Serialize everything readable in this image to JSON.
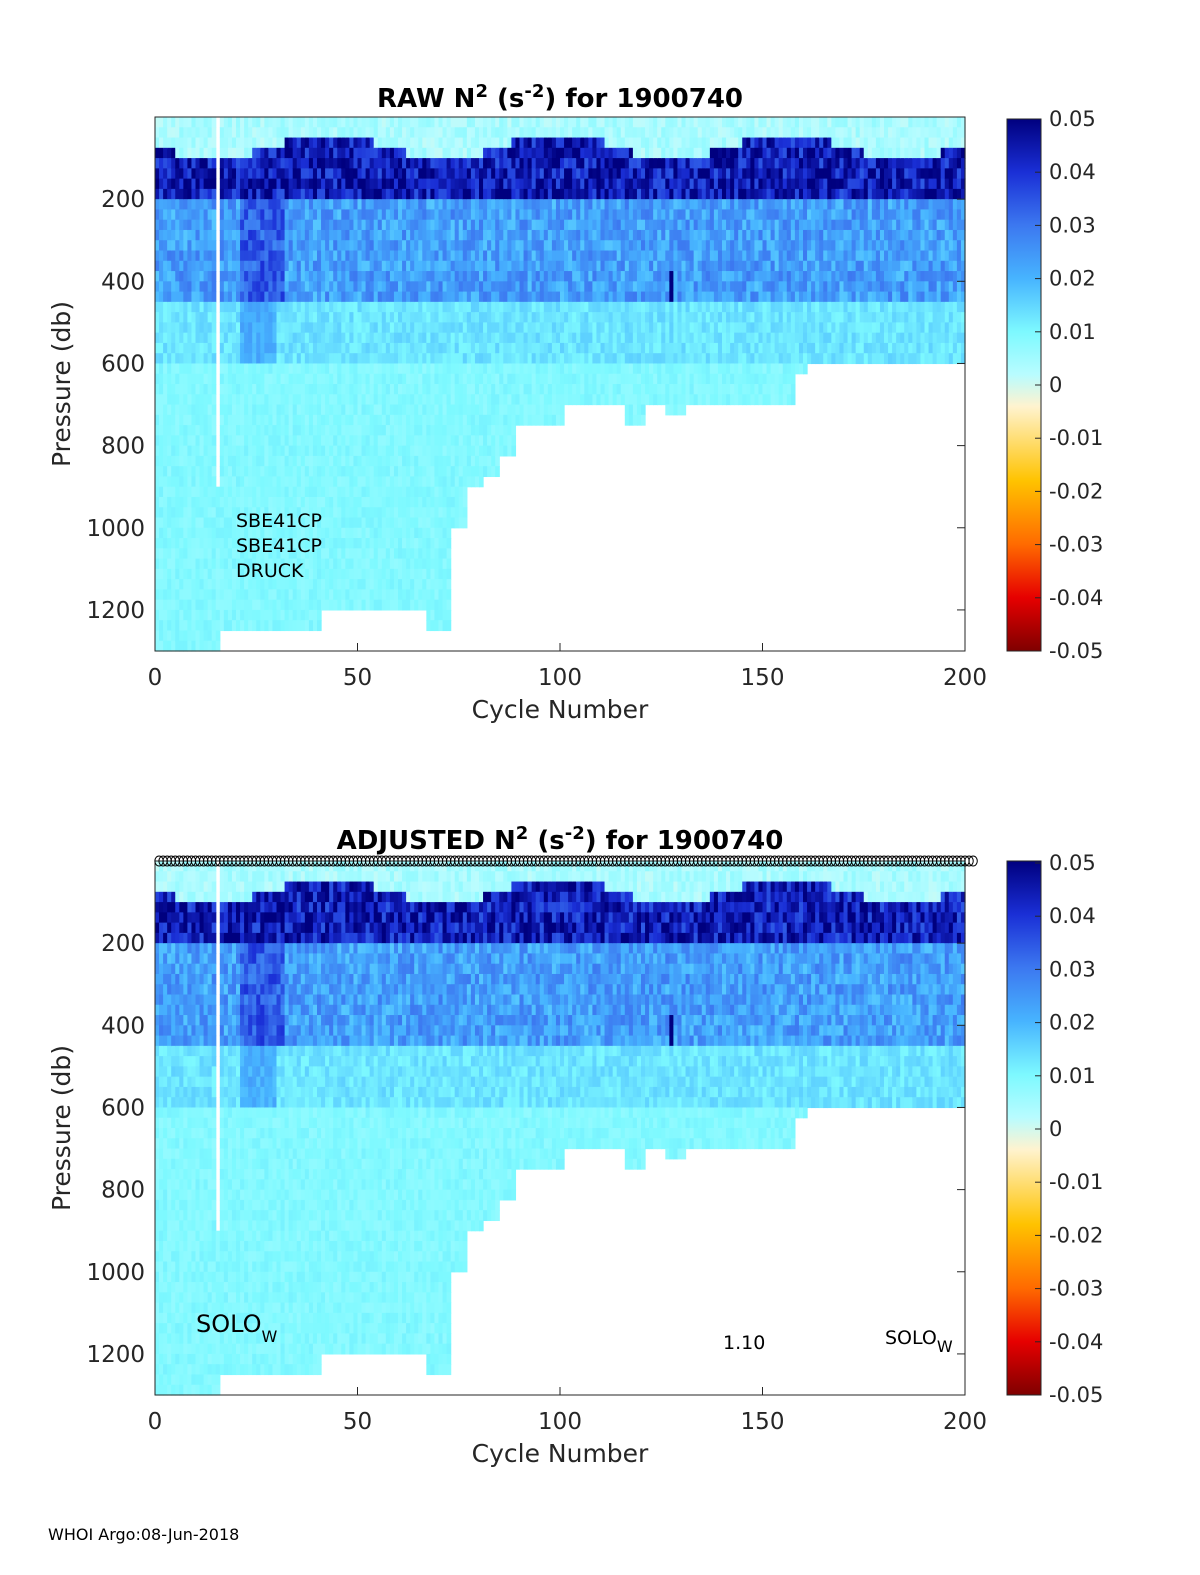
{
  "footer": "WHOI Argo:08-Jun-2018",
  "colorbar": {
    "ticks": [
      "0.05",
      "0.04",
      "0.03",
      "0.02",
      "0.01",
      "0",
      "-0.01",
      "-0.02",
      "-0.03",
      "-0.04",
      "-0.05"
    ],
    "range": [
      -0.05,
      0.05
    ],
    "colormap": [
      "#7f0000",
      "#e60000",
      "#ff6a00",
      "#ffc300",
      "#fff7d6",
      "#7df9ff",
      "#47b4ff",
      "#3c78f0",
      "#1a2fd6",
      "#00007f"
    ]
  },
  "chart_data": [
    {
      "type": "heatmap",
      "title": {
        "prefix": "RAW N",
        "sup1": "2",
        "mid": " (s",
        "sup2": "-2",
        "suffix": ") for 1900740"
      },
      "xlabel": "Cycle Number",
      "ylabel": "Pressure (db)",
      "xlim": [
        0,
        200
      ],
      "ylim": [
        1300,
        0
      ],
      "xticks": [
        "0",
        "50",
        "100",
        "150",
        "200"
      ],
      "yticks": [
        "200",
        "400",
        "600",
        "800",
        "1000",
        "1200"
      ],
      "annotations": [
        "SBE41CP",
        "SBE41CP",
        "DRUCK"
      ],
      "max_depth_profile": {
        "cycles": [
          0,
          15,
          30,
          40,
          55,
          66,
          72,
          76,
          80,
          84,
          88,
          100,
          115,
          120,
          125,
          130,
          140,
          150,
          157,
          160,
          180,
          200
        ],
        "depth": [
          1300,
          1250,
          1240,
          1200,
          1200,
          1250,
          1000,
          900,
          860,
          820,
          750,
          700,
          750,
          700,
          720,
          700,
          700,
          680,
          620,
          600,
          600,
          600
        ]
      },
      "gap_cycle": 15,
      "gap_depth": 900,
      "markers_top": false
    },
    {
      "type": "heatmap",
      "title": {
        "prefix": "ADJUSTED N",
        "sup1": "2",
        "mid": " (s",
        "sup2": "-2",
        "suffix": ") for 1900740"
      },
      "xlabel": "Cycle Number",
      "ylabel": "Pressure (db)",
      "xlim": [
        0,
        200
      ],
      "ylim": [
        1300,
        0
      ],
      "xticks": [
        "0",
        "50",
        "100",
        "150",
        "200"
      ],
      "yticks": [
        "200",
        "400",
        "600",
        "800",
        "1000",
        "1200"
      ],
      "annotations": {
        "left": {
          "text": "SOLO",
          "sub": "W"
        },
        "mid": "1.10",
        "right": {
          "text": "SOLO",
          "sub": "W"
        }
      },
      "max_depth_profile": {
        "cycles": [
          0,
          15,
          30,
          40,
          55,
          66,
          72,
          76,
          80,
          84,
          88,
          100,
          115,
          120,
          125,
          130,
          140,
          150,
          157,
          160,
          180,
          200
        ],
        "depth": [
          1300,
          1250,
          1240,
          1200,
          1200,
          1250,
          1000,
          900,
          860,
          820,
          750,
          700,
          750,
          700,
          720,
          700,
          700,
          680,
          620,
          600,
          600,
          600
        ]
      },
      "gap_cycle": 15,
      "gap_depth": 900,
      "markers_top": true
    }
  ]
}
